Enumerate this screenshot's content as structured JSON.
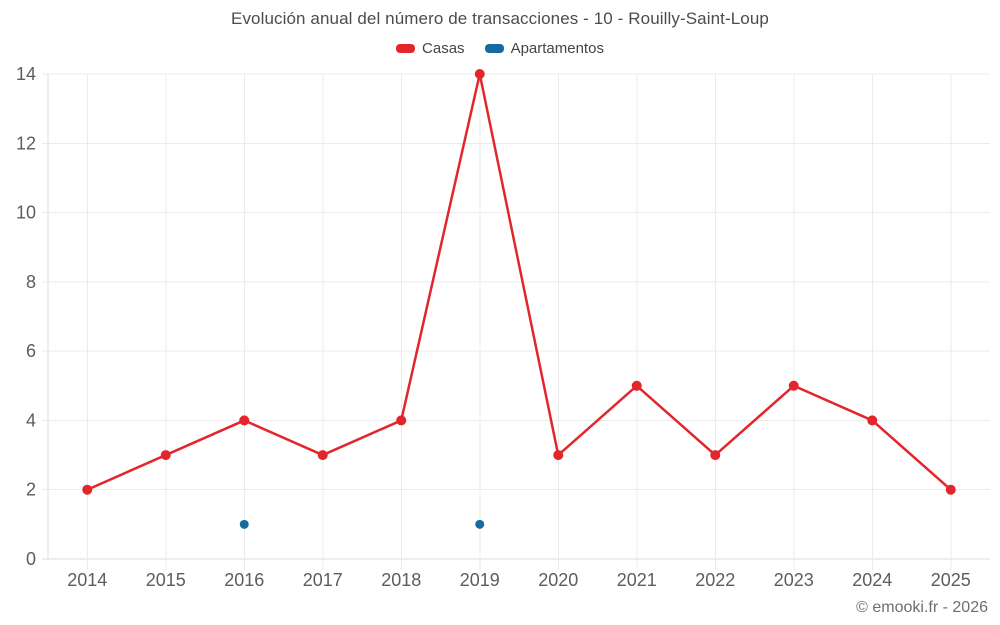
{
  "title": "Evolución anual del número de transacciones - 10 - Rouilly-Saint-Loup",
  "watermark": "© emooki.fr - 2026",
  "colors": {
    "casas": "#e2262c",
    "apartamentos": "#176a9f",
    "grid": "#ebebeb",
    "axis": "#dcdcdc",
    "axis_text": "#5d5d61",
    "title_text": "#4c4c50"
  },
  "chart_data": {
    "type": "line",
    "title": "Evolución anual del número de transacciones - 10 - Rouilly-Saint-Loup",
    "categories": [
      "2014",
      "2015",
      "2016",
      "2017",
      "2018",
      "2019",
      "2020",
      "2021",
      "2022",
      "2023",
      "2024",
      "2025"
    ],
    "series": [
      {
        "name": "Casas",
        "color": "#e2262c",
        "values": [
          2,
          3,
          4,
          3,
          4,
          14,
          3,
          5,
          3,
          5,
          4,
          2
        ]
      },
      {
        "name": "Apartamentos",
        "color": "#176a9f",
        "values": [
          null,
          null,
          1,
          null,
          null,
          1,
          null,
          null,
          null,
          null,
          null,
          null
        ]
      }
    ],
    "xlabel": "",
    "ylabel": "",
    "ylim": [
      0,
      14
    ],
    "ytick_step": 2,
    "grid": true,
    "legend_position": "top"
  }
}
